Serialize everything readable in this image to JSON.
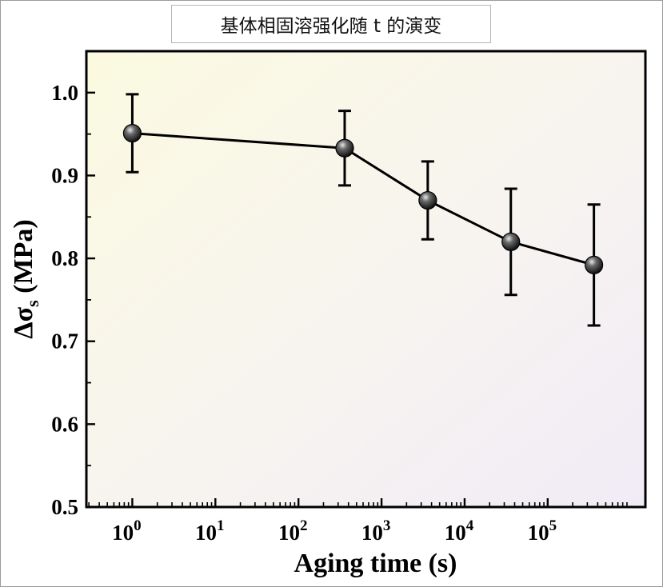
{
  "chart_data": {
    "type": "line",
    "title": "基体相固溶强化随 t 的演变",
    "xlabel": "Aging time (s)",
    "ylabel": "Δσ",
    "ylabel_sub": "s",
    "ylabel_unit": " (MPa)",
    "xscale": "log",
    "xlim": [
      0.28,
      1500000
    ],
    "ylim": [
      0.5,
      1.05
    ],
    "xticks": [
      {
        "value": 1,
        "base": "10",
        "exp": "0"
      },
      {
        "value": 10,
        "base": "10",
        "exp": "1"
      },
      {
        "value": 100,
        "base": "10",
        "exp": "2"
      },
      {
        "value": 1000,
        "base": "10",
        "exp": "3"
      },
      {
        "value": 10000,
        "base": "10",
        "exp": "4"
      },
      {
        "value": 100000,
        "base": "10",
        "exp": "5"
      }
    ],
    "yticks": [
      "0.5",
      "0.6",
      "0.7",
      "0.8",
      "0.9",
      "1.0"
    ],
    "series": [
      {
        "name": "Δσs",
        "x": [
          1,
          360,
          3600,
          36000,
          360000
        ],
        "y": [
          0.951,
          0.933,
          0.87,
          0.82,
          0.792
        ],
        "err": [
          0.047,
          0.045,
          0.047,
          0.064,
          0.073
        ]
      }
    ],
    "colors": {
      "line": "#000000",
      "marker_dark": "#0c0c0c",
      "marker_light": "#e8e8e8",
      "bg_top_left": "#fbfae0",
      "bg_bottom_right": "#f1ebf6"
    }
  }
}
